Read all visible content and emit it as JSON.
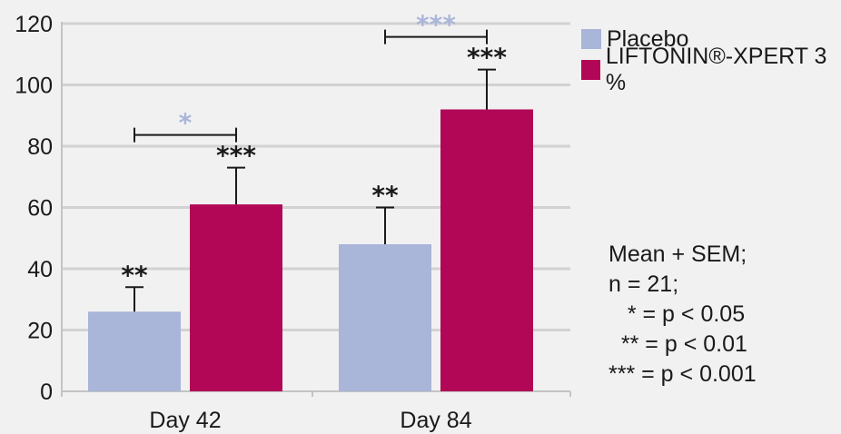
{
  "chart_data": {
    "type": "bar",
    "categories": [
      "Day 42",
      "Day 84"
    ],
    "series": [
      {
        "name": "Placebo",
        "values": [
          26,
          48
        ],
        "errors": [
          8,
          12
        ],
        "color": "#a9b5d9",
        "significance": [
          "**",
          "**"
        ]
      },
      {
        "name": "LIFTONIN®-XPERT 3 %",
        "values": [
          61,
          92
        ],
        "errors": [
          12,
          13
        ],
        "color": "#b10756",
        "significance": [
          "***",
          "***"
        ]
      }
    ],
    "comparisons": [
      {
        "category": "Day 42",
        "label": "*",
        "color": "#a9b5d9"
      },
      {
        "category": "Day 84",
        "label": "***",
        "color": "#a9b5d9"
      }
    ],
    "ylim": [
      0,
      120
    ],
    "yticks": [
      0,
      20,
      40,
      60,
      80,
      100,
      120
    ],
    "ytick_labels": [
      "0",
      "20",
      "40",
      "60",
      "80",
      "100",
      "120"
    ],
    "grid": true,
    "legend_position": "top-right",
    "xlabel": "",
    "ylabel": "",
    "title": ""
  },
  "notes": [
    "Mean + SEM;",
    "n = 21;",
    "   * = p < 0.05",
    "  ** = p < 0.01",
    "*** = p < 0.001"
  ]
}
